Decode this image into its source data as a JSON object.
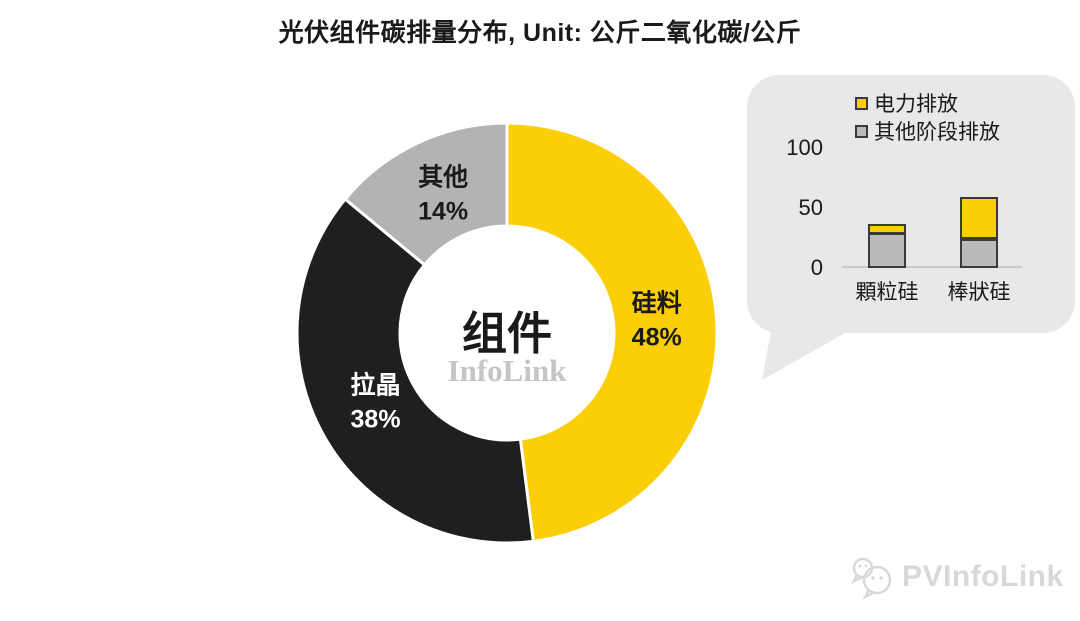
{
  "title": "光伏组件碳排量分布, Unit: 公斤二氧化碳/公斤",
  "colors": {
    "yellow": "#fbce07",
    "black": "#1f1f1f",
    "gray": "#b3b3b3",
    "bubble_bg": "#e8e8e8",
    "bar_gray": "#bababa",
    "bar_border": "#3a3a3a",
    "axis_line": "#c9c9c9",
    "center_watermark": "#c5c5c5",
    "footer_watermark": "#d8d8d8"
  },
  "chart_data": [
    {
      "type": "pie",
      "subtype": "donut",
      "title": "光伏组件碳排量分布",
      "unit": "公斤二氧化碳/公斤",
      "center_label": "组件",
      "watermark": "InfoLink",
      "slices": [
        {
          "label": "硅料",
          "value_pct": 48,
          "color": "#fbce07",
          "text_color": "#1a1a1a"
        },
        {
          "label": "拉晶",
          "value_pct": 38,
          "color": "#1f1f1f",
          "text_color": "#ffffff"
        },
        {
          "label": "其他",
          "value_pct": 14,
          "color": "#b3b3b3",
          "text_color": "#1a1a1a"
        }
      ]
    },
    {
      "type": "bar",
      "stacked": true,
      "categories": [
        "顆粒硅",
        "棒狀硅"
      ],
      "series": [
        {
          "name": "电力排放",
          "color": "#fbce07",
          "values": [
            8,
            35
          ]
        },
        {
          "name": "其他阶段排放",
          "color": "#bababa",
          "values": [
            29,
            24
          ]
        }
      ],
      "yticks": [
        100,
        50,
        0
      ],
      "ylim": [
        0,
        100
      ],
      "legend_position": "top",
      "grid": false
    }
  ],
  "footer": {
    "logo_text": "PVInfoLink"
  }
}
